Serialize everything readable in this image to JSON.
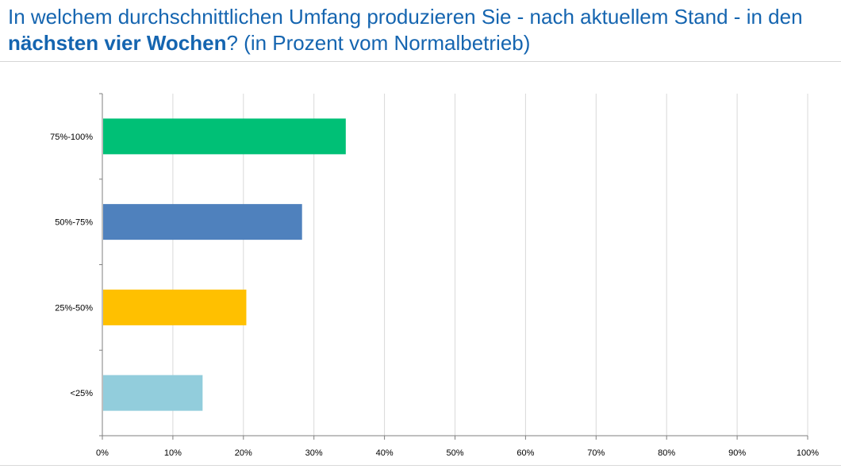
{
  "title": {
    "part1": "In welchem durchschnittlichen Umfang produzieren Sie - nach aktuellem Stand - in den ",
    "bold": "nächsten vier Wochen",
    "part2": "? (in Prozent vom Normalbetrieb)"
  },
  "colors": {
    "title": "#1565b0",
    "gridline": "#d9d9d9",
    "axis": "#7f7f7f"
  },
  "chart_data": {
    "type": "bar",
    "orientation": "horizontal",
    "categories": [
      "75%-100%",
      "50%-75%",
      "25%-50%",
      "<25%"
    ],
    "values": [
      34.4,
      28.2,
      20.3,
      14.1
    ],
    "colors": [
      "#00c076",
      "#4f81bd",
      "#ffc000",
      "#92cddc"
    ],
    "xlim": [
      0,
      100
    ],
    "xticks": [
      "0%",
      "10%",
      "20%",
      "30%",
      "40%",
      "50%",
      "60%",
      "70%",
      "80%",
      "90%",
      "100%"
    ],
    "grid": true
  }
}
